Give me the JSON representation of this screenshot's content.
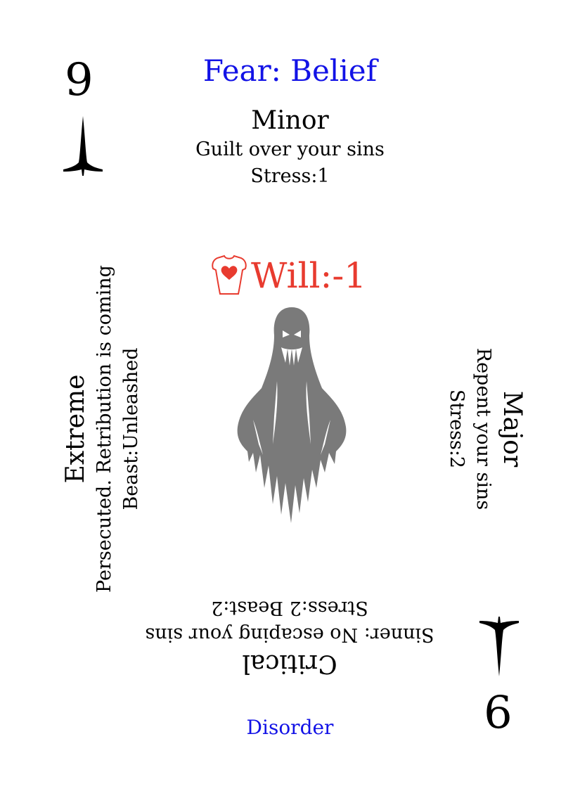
{
  "card": {
    "rank": "9",
    "suit_icon": "dagger-spade-icon",
    "title": "Fear: Belief",
    "footer": "Disorder"
  },
  "minor": {
    "title": "Minor",
    "description": "Guilt over your sins",
    "effect": "Stress:1"
  },
  "major": {
    "title": "Major",
    "description": "Repent your sins",
    "effect": "Stress:2"
  },
  "critical": {
    "title": "Critical",
    "description": "Sinner: No escaping your sins",
    "effect": "Stress:2 Beast:2"
  },
  "extreme": {
    "title": "Extreme",
    "description": "Persecuted. Retribution is coming",
    "effect": "Beast:Unleashed"
  },
  "stat": {
    "icon": "torso-heart-icon",
    "text": "Will:-1"
  },
  "illustration": {
    "icon": "ghost-icon"
  },
  "colors": {
    "title": "#1212e6",
    "stat": "#e83b2f",
    "ghost": "#7a7a7a"
  }
}
